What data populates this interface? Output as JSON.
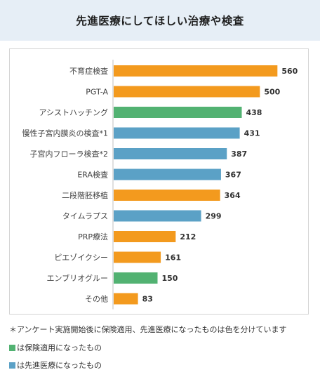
{
  "header": {
    "title": "先進医療にしてほしい治療や検査"
  },
  "colors": {
    "orange": "#f39a1e",
    "green": "#52b272",
    "blue": "#5ba1c6",
    "header_bg": "#e6eef6"
  },
  "chart_data": {
    "type": "bar",
    "orientation": "horizontal",
    "categories": [
      "不育症検査",
      "PGT-A",
      "アシストハッチング",
      "慢性子宮内膜炎の検査*1",
      "子宮内フローラ検査*2",
      "ERA検査",
      "二段階胚移植",
      "タイムラプス",
      "PRP療法",
      "ピエゾイクシー",
      "エンブリオグルー",
      "その他"
    ],
    "values": [
      560,
      500,
      438,
      431,
      387,
      367,
      364,
      299,
      212,
      161,
      150,
      83
    ],
    "bar_colors": [
      "orange",
      "orange",
      "green",
      "blue",
      "blue",
      "blue",
      "orange",
      "blue",
      "orange",
      "orange",
      "green",
      "orange"
    ],
    "xlim": [
      0,
      600
    ],
    "grid": false,
    "data_labels": true
  },
  "footnote": "＊アンケート実施開始後に保険適用、先進医療になったものは色を分けています",
  "legend": [
    {
      "color": "green",
      "label": "は保険適用になったもの"
    },
    {
      "color": "blue",
      "label": "は先進医療になったもの"
    }
  ]
}
